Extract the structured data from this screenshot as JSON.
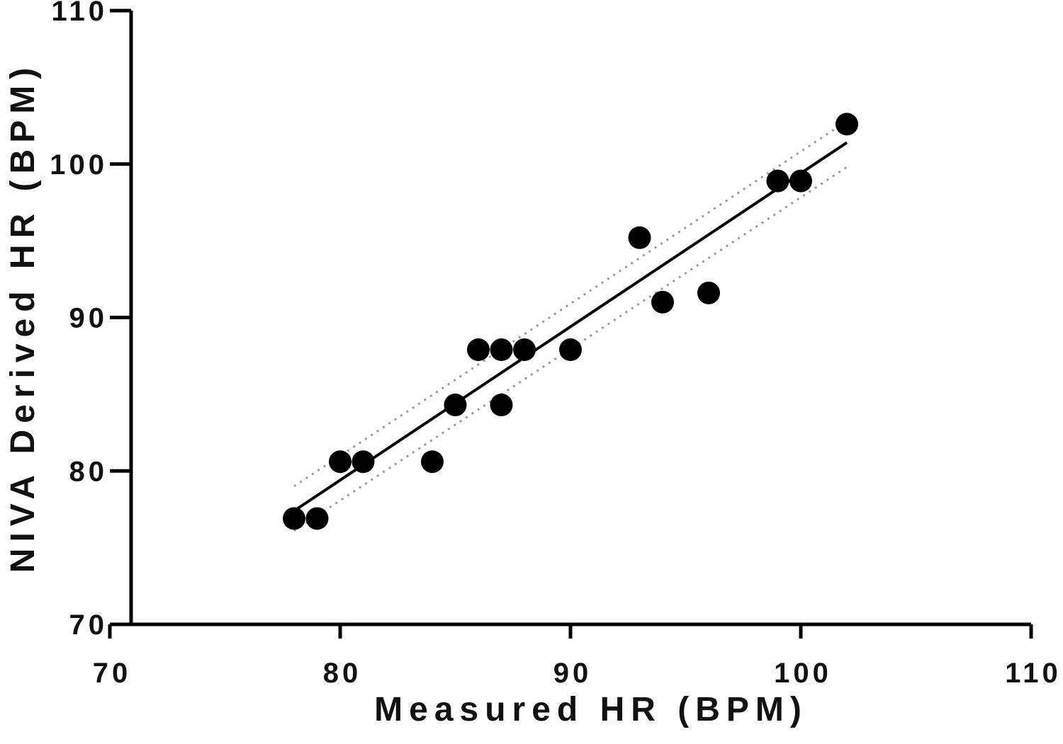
{
  "chart_data": {
    "type": "scatter",
    "x_label": "Measured HR (BPM)",
    "y_label": "NIVA Derived HR (BPM)",
    "x": [
      78,
      79,
      80,
      81,
      84,
      85,
      86,
      87,
      87,
      88,
      90,
      93,
      94,
      96,
      99,
      100,
      102
    ],
    "y": [
      76.9,
      76.9,
      80.6,
      80.6,
      80.6,
      84.3,
      87.9,
      87.9,
      84.3,
      87.9,
      87.9,
      95.2,
      91.0,
      91.6,
      98.9,
      98.9,
      102.6
    ],
    "color": "#000000",
    "fit_line": {
      "x": [
        78,
        102
      ],
      "y": [
        77.4,
        101.4
      ],
      "color": "#000000"
    },
    "confidence_band": {
      "x": [
        78,
        102
      ],
      "upper": [
        79.0,
        102.8
      ],
      "lower": [
        76.1,
        99.8
      ],
      "color": "#999999"
    },
    "xlim": [
      70,
      110
    ],
    "ylim": [
      70,
      110
    ],
    "xticks": [
      70,
      80,
      90,
      100,
      110
    ],
    "yticks": [
      70,
      80,
      90,
      100,
      110
    ],
    "grid": false
  }
}
